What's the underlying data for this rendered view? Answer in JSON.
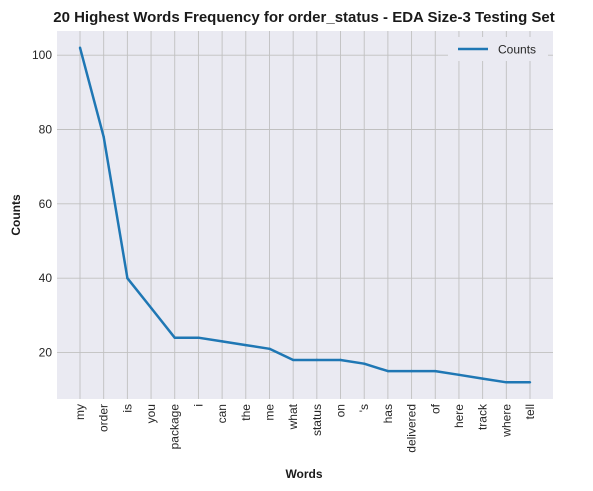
{
  "chart_data": {
    "type": "line",
    "title": "20 Highest Words Frequency for order_status - EDA Size-3 Testing Set",
    "xlabel": "Words",
    "ylabel": "Counts",
    "categories": [
      "my",
      "order",
      "is",
      "you",
      "package",
      "i",
      "can",
      "the",
      "me",
      "what",
      "status",
      "on",
      "'s",
      "has",
      "delivered",
      "of",
      "here",
      "track",
      "where",
      "tell"
    ],
    "series": [
      {
        "name": "Counts",
        "color": "#1f77b4",
        "values": [
          102,
          78,
          40,
          32,
          24,
          24,
          23,
          22,
          21,
          18,
          18,
          18,
          17,
          15,
          15,
          15,
          14,
          13,
          12,
          12
        ]
      }
    ],
    "ylim": [
      7.5,
      106.5
    ],
    "yticks": [
      20,
      40,
      60,
      80,
      100
    ],
    "grid": true,
    "legend": "top-right",
    "colors": {
      "background": "#eaeaf2",
      "grid": "#c0c0c0",
      "line": "#1f77b4"
    }
  }
}
